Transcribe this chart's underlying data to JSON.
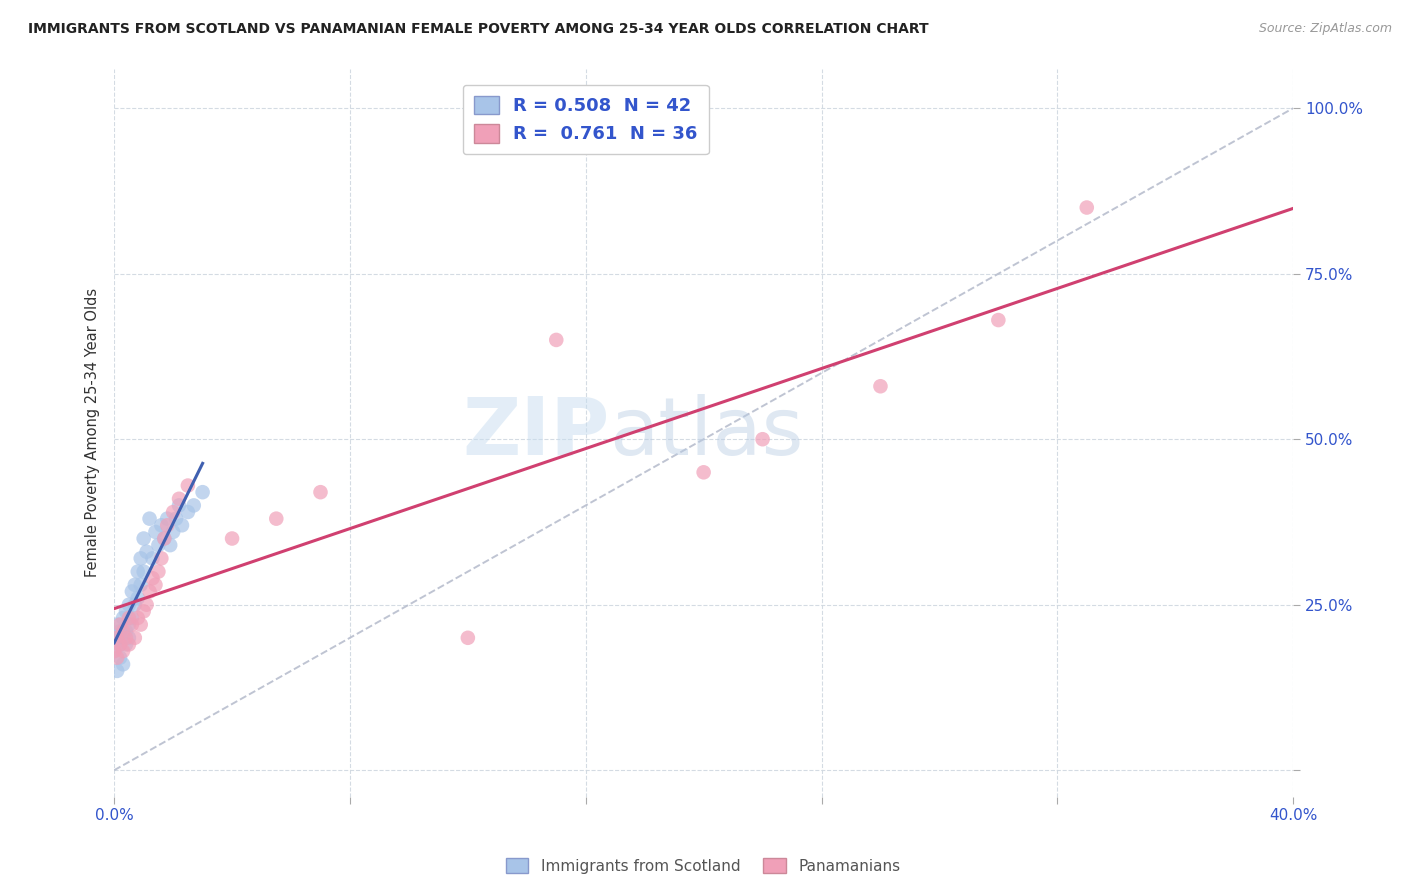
{
  "title": "IMMIGRANTS FROM SCOTLAND VS PANAMANIAN FEMALE POVERTY AMONG 25-34 YEAR OLDS CORRELATION CHART",
  "source": "Source: ZipAtlas.com",
  "ylabel": "Female Poverty Among 25-34 Year Olds",
  "xlim": [
    0.0,
    0.4
  ],
  "ylim": [
    -0.04,
    1.06
  ],
  "scotland_R": 0.508,
  "scotland_N": 42,
  "panama_R": 0.761,
  "panama_N": 36,
  "scotland_color": "#a8c4e8",
  "panama_color": "#f0a0b8",
  "scotland_line_color": "#4060b0",
  "panama_line_color": "#d04070",
  "diagonal_color": "#b8bece",
  "watermark_zip": "ZIP",
  "watermark_atlas": "atlas",
  "legend_label_scotland": "Immigrants from Scotland",
  "legend_label_panama": "Panamanians",
  "scotland_x": [
    0.0,
    0.001,
    0.001,
    0.001,
    0.002,
    0.002,
    0.002,
    0.003,
    0.003,
    0.003,
    0.004,
    0.004,
    0.004,
    0.005,
    0.005,
    0.005,
    0.006,
    0.006,
    0.007,
    0.007,
    0.008,
    0.008,
    0.009,
    0.009,
    0.01,
    0.01,
    0.011,
    0.012,
    0.013,
    0.014,
    0.015,
    0.016,
    0.017,
    0.018,
    0.019,
    0.02,
    0.021,
    0.022,
    0.023,
    0.025,
    0.027,
    0.03
  ],
  "scotland_y": [
    0.18,
    0.2,
    0.15,
    0.22,
    0.19,
    0.17,
    0.21,
    0.2,
    0.23,
    0.16,
    0.21,
    0.24,
    0.19,
    0.22,
    0.25,
    0.2,
    0.23,
    0.27,
    0.25,
    0.28,
    0.26,
    0.3,
    0.28,
    0.32,
    0.3,
    0.35,
    0.33,
    0.38,
    0.32,
    0.36,
    0.34,
    0.37,
    0.35,
    0.38,
    0.34,
    0.36,
    0.38,
    0.4,
    0.37,
    0.39,
    0.4,
    0.42
  ],
  "panama_x": [
    0.0,
    0.001,
    0.001,
    0.002,
    0.002,
    0.003,
    0.003,
    0.004,
    0.005,
    0.005,
    0.006,
    0.007,
    0.008,
    0.009,
    0.01,
    0.011,
    0.012,
    0.013,
    0.014,
    0.015,
    0.016,
    0.017,
    0.018,
    0.02,
    0.022,
    0.025,
    0.04,
    0.055,
    0.07,
    0.12,
    0.15,
    0.2,
    0.22,
    0.26,
    0.3,
    0.33
  ],
  "panama_y": [
    0.18,
    0.17,
    0.2,
    0.19,
    0.22,
    0.18,
    0.21,
    0.2,
    0.23,
    0.19,
    0.22,
    0.2,
    0.23,
    0.22,
    0.24,
    0.25,
    0.27,
    0.29,
    0.28,
    0.3,
    0.32,
    0.35,
    0.37,
    0.39,
    0.41,
    0.43,
    0.35,
    0.38,
    0.42,
    0.2,
    0.65,
    0.45,
    0.5,
    0.58,
    0.68,
    0.85
  ]
}
